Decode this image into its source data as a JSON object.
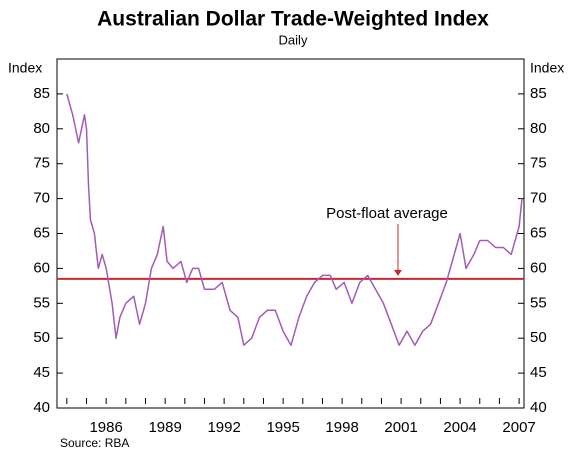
{
  "chart_data": {
    "type": "line",
    "title": "Australian Dollar Trade-Weighted Index",
    "subtitle": "Daily",
    "ylabel": "Index",
    "y2label": "Index",
    "source": "Source: RBA",
    "color": "#a15cb5",
    "x": [
      1984.0,
      1984.3,
      1984.6,
      1984.9,
      1985.0,
      1985.1,
      1985.2,
      1985.4,
      1985.6,
      1985.8,
      1986.0,
      1986.3,
      1986.5,
      1986.7,
      1987.0,
      1987.4,
      1987.7,
      1988.0,
      1988.3,
      1988.6,
      1988.9,
      1989.1,
      1989.4,
      1989.8,
      1990.1,
      1990.4,
      1990.7,
      1991.0,
      1991.5,
      1991.9,
      1992.3,
      1992.7,
      1993.0,
      1993.4,
      1993.8,
      1994.2,
      1994.6,
      1995.0,
      1995.4,
      1995.8,
      1996.2,
      1996.6,
      1997.0,
      1997.4,
      1997.7,
      1998.1,
      1998.5,
      1998.9,
      1999.3,
      1999.7,
      2000.1,
      2000.5,
      2000.9,
      2001.3,
      2001.7,
      2002.1,
      2002.5,
      2002.9,
      2003.3,
      2003.7,
      2004.0,
      2004.3,
      2004.7,
      2005.0,
      2005.4,
      2005.8,
      2006.2,
      2006.6,
      2007.0,
      2007.15
    ],
    "values": [
      85,
      82,
      78,
      82,
      80,
      72,
      67,
      65,
      60,
      62,
      60,
      55,
      50,
      53,
      55,
      56,
      52,
      55,
      60,
      62,
      66,
      61,
      60,
      61,
      58,
      60,
      60,
      57,
      57,
      58,
      54,
      53,
      49,
      50,
      53,
      54,
      54,
      51,
      49,
      53,
      56,
      58,
      59,
      59,
      57,
      58,
      55,
      58,
      59,
      57,
      55,
      52,
      49,
      51,
      49,
      51,
      52,
      55,
      58,
      62,
      65,
      60,
      62,
      64,
      64,
      63,
      63,
      62,
      66,
      70
    ],
    "reference_line": {
      "value": 58.5,
      "label": "Post-float average",
      "color": "#c8282e"
    },
    "xlim": [
      1983.5,
      2007.25
    ],
    "xticks": [
      1986,
      1989,
      1992,
      1995,
      1998,
      2001,
      2004,
      2007
    ],
    "xminorticks": [
      1984,
      1985,
      1986,
      1987,
      1988,
      1989,
      1990,
      1991,
      1992,
      1993,
      1994,
      1995,
      1996,
      1997,
      1998,
      1999,
      2000,
      2001,
      2002,
      2003,
      2004,
      2005,
      2006,
      2007
    ],
    "ylim": [
      40,
      90
    ],
    "yticks": [
      40,
      45,
      50,
      55,
      60,
      65,
      70,
      75,
      80,
      85
    ]
  }
}
